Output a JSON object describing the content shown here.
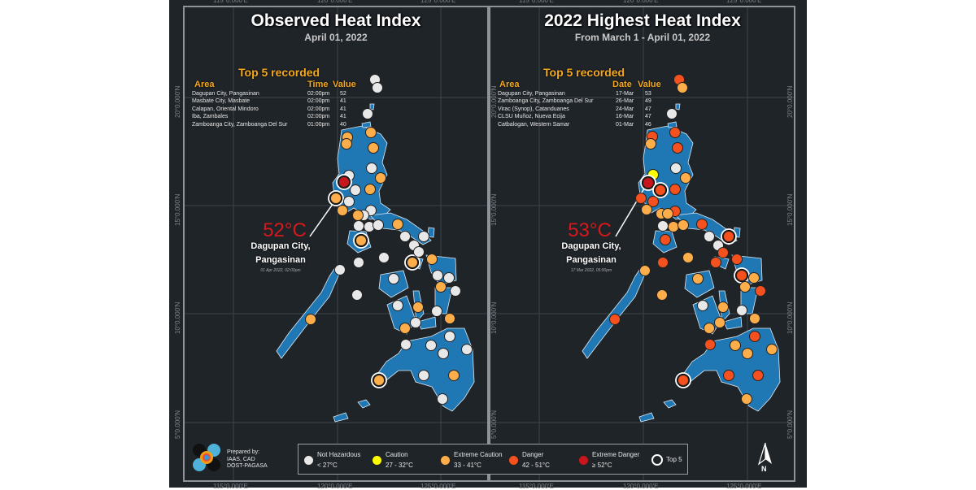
{
  "left_panel": {
    "title": "Observed Heat Index",
    "subtitle": "April 01, 2022",
    "top5": {
      "title": "Top 5 recorded",
      "headers": [
        "Area",
        "Time",
        "Value"
      ],
      "rows": [
        {
          "area": "Dagupan City, Pangasinan",
          "when": "02:00pm",
          "value": "52"
        },
        {
          "area": "Masbate City, Masbate",
          "when": "02:00pm",
          "value": "41"
        },
        {
          "area": "Calapan, Oriental Mindoro",
          "when": "02:00pm",
          "value": "41"
        },
        {
          "area": "Iba, Zambales",
          "when": "02:00pm",
          "value": "41"
        },
        {
          "area": "Zamboanga City, Zamboanga Del Sur",
          "when": "01:00pm",
          "value": "40"
        }
      ]
    },
    "highlight": {
      "temp": "52°C",
      "city_line1": "Dagupan City,",
      "city_line2": "Pangasinan",
      "stamp": "01 Apr 2022, 02:00pm"
    }
  },
  "right_panel": {
    "title": "2022 Highest Heat Index",
    "subtitle": "From March 1 - April 01, 2022",
    "top5": {
      "title": "Top 5 recorded",
      "headers": [
        "Area",
        "Date",
        "Value"
      ],
      "rows": [
        {
          "area": "Dagupan City, Pangasinan",
          "when": "17-Mar",
          "value": "53"
        },
        {
          "area": "Zamboanga City, Zamboanga Del Sur",
          "when": "26-Mar",
          "value": "49"
        },
        {
          "area": "Virac (Synop), Catanduanes",
          "when": "24-Mar",
          "value": "47"
        },
        {
          "area": "CLSU Muñoz, Nueva Ecija",
          "when": "16-Mar",
          "value": "47"
        },
        {
          "area": "Catbalogan, Western Samar",
          "when": "01-Mar",
          "value": "46"
        }
      ]
    },
    "highlight": {
      "temp": "53°C",
      "city_line1": "Dagupan City,",
      "city_line2": "Pangasinan",
      "stamp": "17 Mar 2022, 05:00pm"
    }
  },
  "grid": {
    "lon_labels": [
      "115°0.000'E",
      "120°0.000'E",
      "125°0.000'E"
    ],
    "lat_labels": [
      "20°0.000'N",
      "15°0.000'N",
      "10°0.000'N",
      "5°0.000'N"
    ]
  },
  "legend": {
    "items": [
      {
        "label": "Not Hazardous",
        "range": "< 27°C",
        "color": "#e8e8e8"
      },
      {
        "label": "Caution",
        "range": "27 - 32°C",
        "color": "#ffff00"
      },
      {
        "label": "Extreme Caution",
        "range": "33 - 41°C",
        "color": "#fdae4b"
      },
      {
        "label": "Danger",
        "range": "42 - 51°C",
        "color": "#f4511e"
      },
      {
        "label": "Extreme Danger",
        "range": "≥ 52°C",
        "color": "#c8161d"
      }
    ],
    "top5_label": "Top 5"
  },
  "credits": {
    "line1": "Prepared by:",
    "line2": "IAAS, CAD",
    "line3": "DOST-PAGASA"
  },
  "north_arrow": {
    "label": "N"
  },
  "colors": {
    "land": "#1f78b4",
    "background": "#1f2429",
    "accent": "#f4a81d",
    "highlight_temp": "#d7191c"
  }
}
